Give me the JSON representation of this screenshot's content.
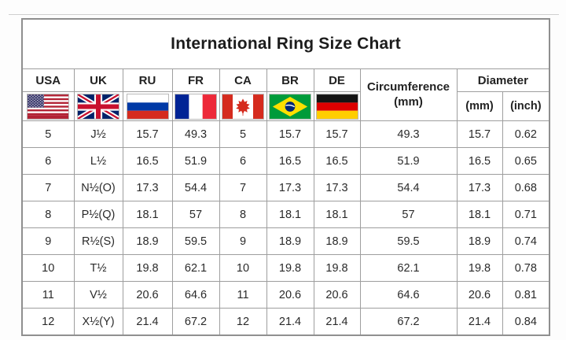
{
  "title": "International Ring Size Chart",
  "header": {
    "countries": [
      {
        "code": "USA",
        "flag_icon": "flag-usa-icon"
      },
      {
        "code": "UK",
        "flag_icon": "flag-uk-icon"
      },
      {
        "code": "RU",
        "flag_icon": "flag-russia-icon"
      },
      {
        "code": "FR",
        "flag_icon": "flag-france-icon"
      },
      {
        "code": "CA",
        "flag_icon": "flag-canada-icon"
      },
      {
        "code": "BR",
        "flag_icon": "flag-brazil-icon"
      },
      {
        "code": "DE",
        "flag_icon": "flag-germany-icon"
      }
    ],
    "circumference": {
      "line1": "Circumference",
      "line2": "(mm)"
    },
    "diameter": {
      "label": "Diameter",
      "mm": "(mm)",
      "inch": "(inch)"
    }
  },
  "chart_data": {
    "type": "table",
    "title": "International Ring Size Chart",
    "columns": [
      "USA",
      "UK",
      "RU",
      "FR",
      "CA",
      "BR",
      "DE",
      "Circumference (mm)",
      "Diameter (mm)",
      "Diameter (inch)"
    ],
    "rows": [
      [
        "5",
        "J½",
        "15.7",
        "49.3",
        "5",
        "15.7",
        "15.7",
        "49.3",
        "15.7",
        "0.62"
      ],
      [
        "6",
        "L½",
        "16.5",
        "51.9",
        "6",
        "16.5",
        "16.5",
        "51.9",
        "16.5",
        "0.65"
      ],
      [
        "7",
        "N½(O)",
        "17.3",
        "54.4",
        "7",
        "17.3",
        "17.3",
        "54.4",
        "17.3",
        "0.68"
      ],
      [
        "8",
        "P½(Q)",
        "18.1",
        "57",
        "8",
        "18.1",
        "18.1",
        "57",
        "18.1",
        "0.71"
      ],
      [
        "9",
        "R½(S)",
        "18.9",
        "59.5",
        "9",
        "18.9",
        "18.9",
        "59.5",
        "18.9",
        "0.74"
      ],
      [
        "10",
        "T½",
        "19.8",
        "62.1",
        "10",
        "19.8",
        "19.8",
        "62.1",
        "19.8",
        "0.78"
      ],
      [
        "11",
        "V½",
        "20.6",
        "64.6",
        "11",
        "20.6",
        "20.6",
        "64.6",
        "20.6",
        "0.81"
      ],
      [
        "12",
        "X½(Y)",
        "21.4",
        "67.2",
        "12",
        "21.4",
        "21.4",
        "67.2",
        "21.4",
        "0.84"
      ]
    ]
  },
  "colors": {
    "grid_border": "#9e9e9e",
    "outer_border": "#8f8f8f",
    "text": "#262626",
    "background": "#ffffff"
  }
}
